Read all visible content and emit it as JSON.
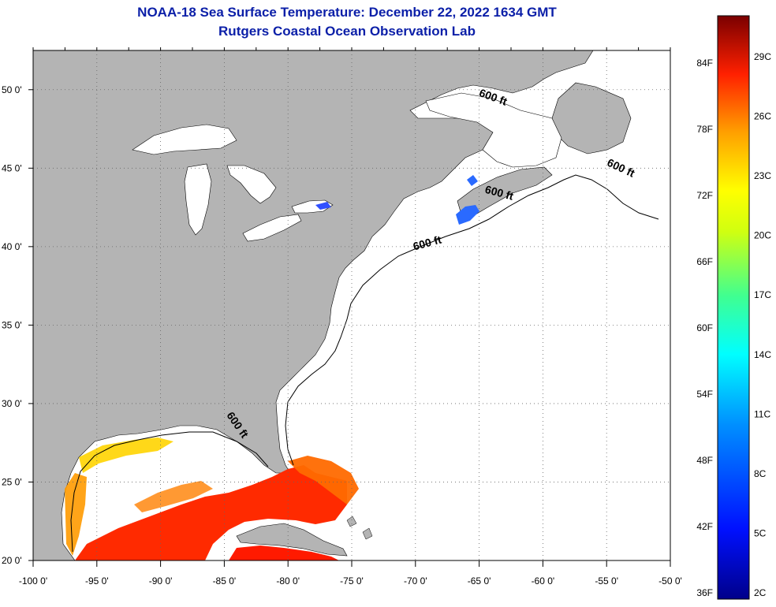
{
  "title": {
    "line1": "NOAA-18 Sea Surface Temperature:  December 22, 2022 1634 GMT",
    "line2": "Rutgers Coastal Ocean Observation Lab"
  },
  "map": {
    "lon_range": [
      -100,
      -50
    ],
    "lat_range": [
      20,
      52.5
    ],
    "lon_ticks": [
      {
        "value": -100,
        "label": "-100 0'"
      },
      {
        "value": -95,
        "label": "-95 0'"
      },
      {
        "value": -90,
        "label": "-90 0'"
      },
      {
        "value": -85,
        "label": "-85 0'"
      },
      {
        "value": -80,
        "label": "-80 0'"
      },
      {
        "value": -75,
        "label": "-75 0'"
      },
      {
        "value": -70,
        "label": "-70 0'"
      },
      {
        "value": -65,
        "label": "-65 0'"
      },
      {
        "value": -60,
        "label": "-60 0'"
      },
      {
        "value": -55,
        "label": "-55 0'"
      },
      {
        "value": -50,
        "label": "-50 0'"
      }
    ],
    "lat_ticks": [
      {
        "value": 20,
        "label": "20 0'"
      },
      {
        "value": 25,
        "label": "25 0'"
      },
      {
        "value": 30,
        "label": "30 0'"
      },
      {
        "value": 35,
        "label": "35 0'"
      },
      {
        "value": 40,
        "label": "40 0'"
      },
      {
        "value": 45,
        "label": "45 0'"
      },
      {
        "value": 50,
        "label": "50 0'"
      }
    ],
    "contour_label": "600 ft",
    "contour_labels": [
      {
        "lon": -64,
        "lat": 49.3
      },
      {
        "lon": -54,
        "lat": 44.8
      },
      {
        "lon": -63.5,
        "lat": 43.2
      },
      {
        "lon": -69,
        "lat": 40.0
      },
      {
        "lon": -84.2,
        "lat": 28.5
      }
    ],
    "land_color": "#b4b4b4",
    "ocean_color": "#ffffff"
  },
  "colorbar": {
    "f_labels": [
      "84F",
      "78F",
      "72F",
      "66F",
      "60F",
      "54F",
      "48F",
      "42F",
      "36F"
    ],
    "c_labels": [
      "29C",
      "26C",
      "23C",
      "20C",
      "17C",
      "14C",
      "11C",
      "8C",
      "5C",
      "2C"
    ],
    "top_color": "#7a0000",
    "bottom_color": "#00008a"
  }
}
